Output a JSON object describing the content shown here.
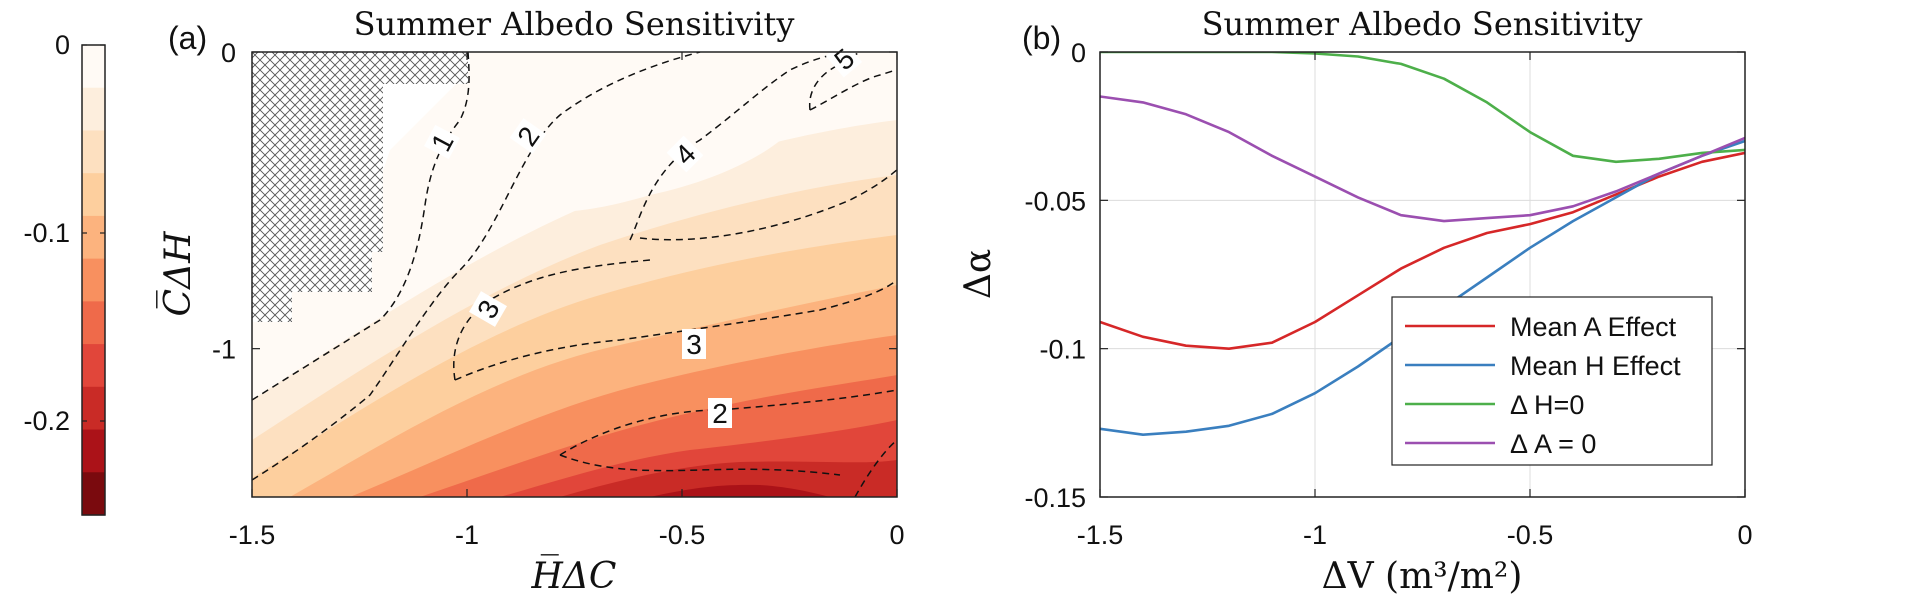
{
  "colorbar": {
    "ticks": [
      {
        "value": 0,
        "label": "0"
      },
      {
        "value": -0.1,
        "label": "-0.1"
      },
      {
        "value": -0.2,
        "label": "-0.2"
      }
    ],
    "levels": [
      "#fffaf5",
      "#fdeedd",
      "#fde0c0",
      "#fdcf9e",
      "#fcb37e",
      "#f8905f",
      "#ef6a4a",
      "#e1463a",
      "#c92b26",
      "#ab1218",
      "#7a0a0e"
    ],
    "range": [
      -0.25,
      0
    ]
  },
  "panel_a": {
    "label": "(a)",
    "title": "Summer Albedo Sensitivity",
    "xlabel": "H̅ΔC",
    "ylabel": "C̅ΔH",
    "xticks": [
      "-1.5",
      "-1",
      "-0.5",
      "0"
    ],
    "yticks": [
      "0",
      "-1"
    ],
    "contour_labels": [
      "1",
      "2",
      "4",
      "5",
      "3",
      "3",
      "2"
    ]
  },
  "panel_b": {
    "label": "(b)",
    "title": "Summer Albedo Sensitivity",
    "xlabel": "ΔV  (m³/m²)",
    "ylabel": "Δα",
    "xticks": [
      "-1.5",
      "-1",
      "-0.5",
      "0"
    ],
    "yticks": [
      "0",
      "-0.05",
      "-0.1",
      "-0.15"
    ]
  },
  "chart_data": [
    {
      "type": "heatmap",
      "title": "Summer Albedo Sensitivity",
      "xlabel": "H̅ΔC",
      "ylabel": "C̅ΔH",
      "xlim": [
        -1.5,
        0
      ],
      "ylim": [
        -1.5,
        0
      ],
      "colorbar_range": [
        -0.25,
        0
      ],
      "colorbar_ticks": [
        0,
        -0.1,
        -0.2
      ],
      "hatched_region": "upper-left (no data)",
      "contour_levels": [
        1,
        2,
        3,
        4,
        5
      ]
    },
    {
      "type": "line",
      "title": "Summer Albedo Sensitivity",
      "xlabel": "ΔV (m³/m²)",
      "ylabel": "Δα",
      "xlim": [
        -1.5,
        0
      ],
      "ylim": [
        -0.15,
        0
      ],
      "grid": true,
      "legend_position": "lower-right",
      "x": [
        -1.5,
        -1.4,
        -1.3,
        -1.2,
        -1.1,
        -1.0,
        -0.9,
        -0.8,
        -0.7,
        -0.6,
        -0.5,
        -0.4,
        -0.3,
        -0.2,
        -0.1,
        0.0
      ],
      "series": [
        {
          "name": "Mean A Effect",
          "color": "#d62728",
          "values": [
            -0.091,
            -0.096,
            -0.099,
            -0.1,
            -0.098,
            -0.091,
            -0.082,
            -0.073,
            -0.066,
            -0.061,
            -0.058,
            -0.054,
            -0.048,
            -0.042,
            -0.037,
            -0.034
          ]
        },
        {
          "name": "Mean H Effect",
          "color": "#3a7fbf",
          "values": [
            -0.127,
            -0.129,
            -0.128,
            -0.126,
            -0.122,
            -0.115,
            -0.106,
            -0.096,
            -0.086,
            -0.076,
            -0.066,
            -0.057,
            -0.049,
            -0.041,
            -0.035,
            -0.03
          ]
        },
        {
          "name": "Δ H=0",
          "color": "#4daf4a",
          "values": [
            0,
            0,
            0,
            0,
            0,
            -0.0005,
            -0.0015,
            -0.004,
            -0.009,
            -0.017,
            -0.027,
            -0.035,
            -0.037,
            -0.036,
            -0.034,
            -0.033
          ]
        },
        {
          "name": "Δ A = 0",
          "color": "#9b4fb0",
          "values": [
            -0.015,
            -0.017,
            -0.021,
            -0.027,
            -0.035,
            -0.042,
            -0.049,
            -0.055,
            -0.057,
            -0.056,
            -0.055,
            -0.052,
            -0.047,
            -0.041,
            -0.035,
            -0.029
          ]
        }
      ]
    }
  ]
}
